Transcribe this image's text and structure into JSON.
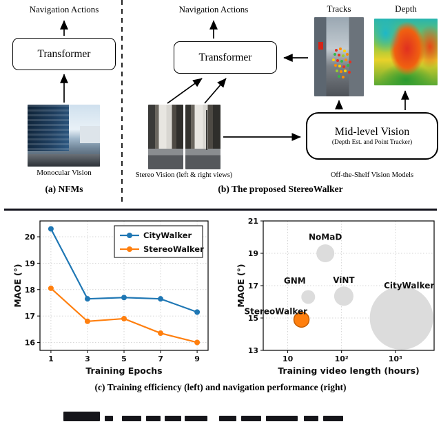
{
  "figure": {
    "panel_a": {
      "nav_actions": "Navigation Actions",
      "transformer_label": "Transformer",
      "image_caption": "Monocular Vision",
      "caption": "(a) NFMs"
    },
    "panel_b": {
      "nav_actions": "Navigation Actions",
      "transformer_label": "Transformer",
      "tracks_label": "Tracks",
      "depth_label": "Depth",
      "midlevel_title": "Mid-level Vision",
      "midlevel_subtitle": "(Depth Est. and Point Tracker)",
      "stereo_caption": "Stereo Vision (left & right views)",
      "offshelf_caption": "Off-the-Shelf Vision Models",
      "caption": "(b) The proposed StereoWalker"
    },
    "panel_c": {
      "caption": "(c) Training efficiency (left) and navigation performance (right)"
    }
  },
  "colors": {
    "citywalker_blue": "#1f77b4",
    "stereowalker_orange": "#ff7f0e",
    "bubble_gray": "#dcdcdc"
  },
  "chart_data": [
    {
      "type": "line",
      "title": "",
      "xlabel": "Training Epochs",
      "ylabel": "MAOE (°)",
      "x": [
        1,
        3,
        5,
        7,
        9
      ],
      "xticks": [
        1,
        3,
        5,
        7,
        9
      ],
      "yticks": [
        16,
        17,
        18,
        19,
        20
      ],
      "xlim": [
        0.4,
        9.6
      ],
      "ylim": [
        15.7,
        20.6
      ],
      "grid": true,
      "legend_position": "upper right",
      "series": [
        {
          "name": "CityWalker",
          "color": "#1f77b4",
          "values": [
            20.3,
            17.65,
            17.7,
            17.65,
            17.15
          ]
        },
        {
          "name": "StereoWalker",
          "color": "#ff7f0e",
          "values": [
            18.05,
            16.8,
            16.9,
            16.35,
            16.0
          ]
        }
      ]
    },
    {
      "type": "scatter",
      "title": "",
      "xlabel": "Training video length (hours)",
      "ylabel": "MAOE (°)",
      "xscale": "log",
      "xlim": [
        3.5,
        5250
      ],
      "ylim": [
        13,
        21
      ],
      "yticks": [
        13,
        15,
        17,
        19,
        21
      ],
      "xticks": [
        10,
        100,
        1000
      ],
      "xtick_labels": [
        "10",
        "10²",
        "10³"
      ],
      "grid": true,
      "points": [
        {
          "name": "NoMaD",
          "x": 50,
          "y": 19.0,
          "r": 13,
          "color": "#dcdcdc",
          "label_x": 50,
          "label_y": 20.0
        },
        {
          "name": "GNM",
          "x": 24,
          "y": 16.3,
          "r": 10,
          "color": "#dcdcdc",
          "label_x": 13.5,
          "label_y": 17.3
        },
        {
          "name": "ViNT",
          "x": 110,
          "y": 16.35,
          "r": 14,
          "color": "#dcdcdc",
          "label_x": 110,
          "label_y": 17.35
        },
        {
          "name": "CityWalker",
          "x": 1300,
          "y": 15.0,
          "r": 46,
          "color": "#dcdcdc",
          "label_x": 1800,
          "label_y": 17.0
        },
        {
          "name": "StereoWalker",
          "x": 18,
          "y": 14.9,
          "r": 11,
          "color": "#ff7f0e",
          "edge": "#c45c00",
          "label_x": 6,
          "label_y": 15.4
        }
      ]
    }
  ],
  "cropped_fragments": [
    {
      "x": 92,
      "w": 53,
      "h": 14
    },
    {
      "x": 152,
      "w": 12,
      "h": 8
    },
    {
      "x": 177,
      "w": 28,
      "h": 8
    },
    {
      "x": 212,
      "w": 21,
      "h": 8
    },
    {
      "x": 239,
      "w": 24,
      "h": 8
    },
    {
      "x": 268,
      "w": 33,
      "h": 8
    },
    {
      "x": 318,
      "w": 25,
      "h": 8
    },
    {
      "x": 350,
      "w": 29,
      "h": 8
    },
    {
      "x": 386,
      "w": 46,
      "h": 8
    },
    {
      "x": 441,
      "w": 21,
      "h": 8
    },
    {
      "x": 469,
      "w": 29,
      "h": 8
    }
  ]
}
